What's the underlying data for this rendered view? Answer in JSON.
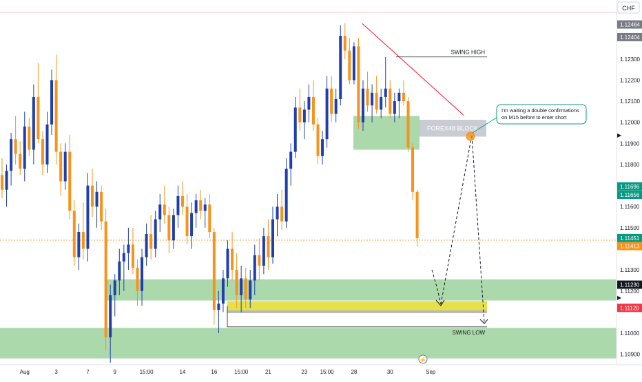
{
  "chart_data": {
    "type": "candlestick",
    "currency": "CHF",
    "price_axis": {
      "min": 1.1085,
      "max": 1.1258,
      "ticks": [
        "1.12300",
        "1.12200",
        "1.12100",
        "1.12000",
        "1.11900",
        "1.11800",
        "1.11600",
        "1.11500",
        "1.11300",
        "1.11200",
        "1.11000",
        "1.10900"
      ],
      "tick_values": [
        1.123,
        1.122,
        1.121,
        1.12,
        1.119,
        1.118,
        1.116,
        1.115,
        1.113,
        1.112,
        1.11,
        1.109
      ],
      "price_labels": [
        {
          "text": "1.12464",
          "value": 1.12464,
          "color": "#787b86"
        },
        {
          "text": "1.12404",
          "value": 1.12404,
          "color": "#787b86"
        },
        {
          "text": "1.11696",
          "value": 1.11696,
          "color": "#089981"
        },
        {
          "text": "1.11656",
          "value": 1.11656,
          "color": "#089981"
        },
        {
          "text": "1.11451",
          "value": 1.11451,
          "color": "#089981"
        },
        {
          "text": "1.11413",
          "value": 1.11413,
          "color": "#f7931a"
        },
        {
          "text": "1.11230",
          "value": 1.1123,
          "color": "#131722"
        },
        {
          "text": "1.11120",
          "value": 1.1112,
          "color": "#f23645"
        }
      ]
    },
    "time_axis": {
      "labels": [
        "Aug",
        "3",
        "7",
        "9",
        "15:00",
        "14",
        "16",
        "15:00",
        "21",
        "23",
        "15:00",
        "28",
        "30",
        "Sep"
      ],
      "label_bar_index": [
        5,
        12,
        19,
        25,
        32,
        40,
        47,
        53,
        59,
        67,
        72,
        78,
        86,
        95
      ]
    },
    "colors": {
      "bull": "#1f3fae",
      "bear": "#f7931a",
      "zone": "#8fcc8f",
      "yellow": "#e6e04a",
      "trendline": "#f23645",
      "block": "#c9ccd3"
    },
    "candles": [
      [
        1.1175,
        1.1183,
        1.1164,
        1.1168
      ],
      [
        1.1168,
        1.118,
        1.116,
        1.1177
      ],
      [
        1.1177,
        1.1195,
        1.117,
        1.1192
      ],
      [
        1.1192,
        1.1203,
        1.118,
        1.1185
      ],
      [
        1.1185,
        1.1191,
        1.1175,
        1.1178
      ],
      [
        1.1178,
        1.1205,
        1.1172,
        1.1198
      ],
      [
        1.1198,
        1.1202,
        1.1184,
        1.1187
      ],
      [
        1.1187,
        1.1218,
        1.118,
        1.1212
      ],
      [
        1.1212,
        1.1228,
        1.119,
        1.1192
      ],
      [
        1.1192,
        1.1196,
        1.1175,
        1.118
      ],
      [
        1.118,
        1.1205,
        1.1176,
        1.1199
      ],
      [
        1.1199,
        1.1225,
        1.1194,
        1.122
      ],
      [
        1.122,
        1.1232,
        1.118,
        1.1186
      ],
      [
        1.1186,
        1.119,
        1.1165,
        1.1172
      ],
      [
        1.1172,
        1.119,
        1.1168,
        1.1186
      ],
      [
        1.1186,
        1.1194,
        1.1154,
        1.1158
      ],
      [
        1.1158,
        1.1163,
        1.1132,
        1.1136
      ],
      [
        1.1136,
        1.1152,
        1.113,
        1.1148
      ],
      [
        1.1148,
        1.1162,
        1.1135,
        1.114
      ],
      [
        1.114,
        1.1176,
        1.1134,
        1.117
      ],
      [
        1.117,
        1.1178,
        1.1155,
        1.116
      ],
      [
        1.116,
        1.1172,
        1.115,
        1.1167
      ],
      [
        1.1167,
        1.117,
        1.1149,
        1.1153
      ],
      [
        1.1153,
        1.1159,
        1.1092,
        1.1098
      ],
      [
        1.1098,
        1.1123,
        1.1086,
        1.1118
      ],
      [
        1.1118,
        1.1128,
        1.1108,
        1.1125
      ],
      [
        1.1125,
        1.114,
        1.1118,
        1.1134
      ],
      [
        1.1134,
        1.1142,
        1.112,
        1.1138
      ],
      [
        1.1138,
        1.115,
        1.113,
        1.1142
      ],
      [
        1.1142,
        1.115,
        1.1128,
        1.1131
      ],
      [
        1.1131,
        1.1135,
        1.1113,
        1.112
      ],
      [
        1.112,
        1.114,
        1.1113,
        1.1136
      ],
      [
        1.1136,
        1.1152,
        1.1132,
        1.1147
      ],
      [
        1.1147,
        1.1156,
        1.1135,
        1.114
      ],
      [
        1.114,
        1.1158,
        1.1136,
        1.1154
      ],
      [
        1.1154,
        1.1166,
        1.1148,
        1.1161
      ],
      [
        1.1161,
        1.117,
        1.1152,
        1.1156
      ],
      [
        1.1156,
        1.116,
        1.1138,
        1.1144
      ],
      [
        1.1144,
        1.1159,
        1.114,
        1.1156
      ],
      [
        1.1156,
        1.117,
        1.115,
        1.1165
      ],
      [
        1.1165,
        1.1172,
        1.1156,
        1.116
      ],
      [
        1.116,
        1.1166,
        1.1142,
        1.1146
      ],
      [
        1.1146,
        1.1162,
        1.114,
        1.1157
      ],
      [
        1.1157,
        1.1166,
        1.115,
        1.1163
      ],
      [
        1.1163,
        1.1168,
        1.1154,
        1.1158
      ],
      [
        1.1158,
        1.1164,
        1.115,
        1.1161
      ],
      [
        1.1161,
        1.1166,
        1.1145,
        1.1148
      ],
      [
        1.1148,
        1.115,
        1.1104,
        1.1111
      ],
      [
        1.1111,
        1.112,
        1.11,
        1.1114
      ],
      [
        1.1114,
        1.113,
        1.111,
        1.1126
      ],
      [
        1.1126,
        1.1144,
        1.1122,
        1.114
      ],
      [
        1.114,
        1.1148,
        1.1125,
        1.113
      ],
      [
        1.113,
        1.1138,
        1.1112,
        1.1118
      ],
      [
        1.1118,
        1.1132,
        1.111,
        1.1126
      ],
      [
        1.1126,
        1.1131,
        1.1112,
        1.1116
      ],
      [
        1.1116,
        1.113,
        1.1112,
        1.1125
      ],
      [
        1.1125,
        1.1142,
        1.1118,
        1.1137
      ],
      [
        1.1137,
        1.1145,
        1.1125,
        1.1132
      ],
      [
        1.1132,
        1.115,
        1.1128,
        1.1146
      ],
      [
        1.1146,
        1.1154,
        1.113,
        1.1136
      ],
      [
        1.1136,
        1.116,
        1.1133,
        1.1154
      ],
      [
        1.1154,
        1.1166,
        1.1146,
        1.116
      ],
      [
        1.116,
        1.1168,
        1.1149,
        1.1153
      ],
      [
        1.1153,
        1.1183,
        1.115,
        1.1178
      ],
      [
        1.1178,
        1.119,
        1.117,
        1.1186
      ],
      [
        1.1186,
        1.1212,
        1.1183,
        1.1207
      ],
      [
        1.1207,
        1.1216,
        1.1196,
        1.12
      ],
      [
        1.12,
        1.121,
        1.1192,
        1.1206
      ],
      [
        1.1206,
        1.1218,
        1.12,
        1.1212
      ],
      [
        1.1212,
        1.122,
        1.1196,
        1.1199
      ],
      [
        1.1199,
        1.1202,
        1.118,
        1.1184
      ],
      [
        1.1184,
        1.1196,
        1.118,
        1.1192
      ],
      [
        1.1192,
        1.1222,
        1.1188,
        1.1216
      ],
      [
        1.1216,
        1.1222,
        1.12,
        1.1204
      ],
      [
        1.1204,
        1.1216,
        1.12,
        1.1211
      ],
      [
        1.1211,
        1.1246,
        1.1208,
        1.1241
      ],
      [
        1.1241,
        1.1247,
        1.123,
        1.1234
      ],
      [
        1.1234,
        1.124,
        1.1218,
        1.122
      ],
      [
        1.122,
        1.1238,
        1.1218,
        1.1236
      ],
      [
        1.1236,
        1.124,
        1.1197,
        1.12
      ],
      [
        1.12,
        1.122,
        1.1196,
        1.1216
      ],
      [
        1.1216,
        1.1224,
        1.1205,
        1.1208
      ],
      [
        1.1208,
        1.1218,
        1.12,
        1.1214
      ],
      [
        1.1214,
        1.1222,
        1.1204,
        1.1206
      ],
      [
        1.1206,
        1.1216,
        1.1202,
        1.1212
      ],
      [
        1.1212,
        1.1231,
        1.1207,
        1.1216
      ],
      [
        1.1216,
        1.122,
        1.1202,
        1.1204
      ],
      [
        1.1204,
        1.1214,
        1.12,
        1.121
      ],
      [
        1.121,
        1.1216,
        1.1202,
        1.1214
      ],
      [
        1.1214,
        1.122,
        1.1208,
        1.121
      ],
      [
        1.121,
        1.1212,
        1.1186,
        1.1188
      ],
      [
        1.1188,
        1.119,
        1.1163,
        1.1167
      ],
      [
        1.1167,
        1.1168,
        1.1141,
        1.1145
      ],
      [
        null,
        null,
        null,
        null
      ],
      [
        null,
        null,
        null,
        null
      ]
    ],
    "annotations": {
      "swing_high_label": "SWING HIGH",
      "swing_low_label": "SWING LOW",
      "block_label": "FOREX48 BLOCK",
      "callout_text": [
        "I'm waiting a double confirmations",
        "on M15 before to enter short"
      ],
      "zones": [
        {
          "name": "upper-demand-zone",
          "from": 1.11255,
          "to": 1.11155
        },
        {
          "name": "lower-demand-zone",
          "from": 1.11025,
          "to": 1.1088
        },
        {
          "name": "recent-demand-zone",
          "from": 1.1203,
          "to": 1.1187
        }
      ],
      "swing_high_level": 1.1231,
      "swing_low_level": 1.1103,
      "lightning_icon": "lightning-icon"
    }
  }
}
